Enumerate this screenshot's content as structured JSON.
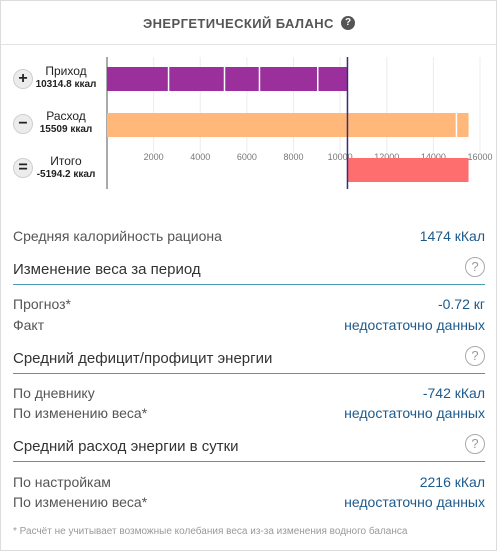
{
  "header": {
    "title": "ЭНЕРГЕТИЧЕСКИЙ БАЛАНС",
    "help_icon": "?"
  },
  "chart_data": {
    "type": "bar",
    "orientation": "horizontal",
    "xlim": [
      0,
      16000
    ],
    "ticks": [
      "2000",
      "4000",
      "6000",
      "8000",
      "10000",
      "12000",
      "14000",
      "16000"
    ],
    "tick_values": [
      2000,
      4000,
      6000,
      8000,
      10000,
      12000,
      14000,
      16000
    ],
    "reference_value": 10314.8,
    "rows": [
      {
        "icon": "+",
        "label": "Приход",
        "value_text": "10314.8 ккал",
        "start": 0,
        "end": 10314.8,
        "color": "#9b2f9c",
        "segments": [
          2640,
          5040,
          6540,
          9040
        ]
      },
      {
        "icon": "−",
        "label": "Расход",
        "value_text": "15509 ккал",
        "start": 0,
        "end": 15509,
        "color": "#ffb879",
        "segments": [
          14990
        ]
      },
      {
        "icon": "=",
        "label": "Итого",
        "value_text": "-5194.2 ккал",
        "start": 10314.8,
        "end": 15509,
        "color": "#ff6e6e",
        "segments": []
      }
    ]
  },
  "stats": {
    "avg_calories_label": "Средняя калорийность рациона",
    "avg_calories_value": "1474 кКал",
    "weight_change": {
      "title": "Изменение веса за период",
      "forecast_label": "Прогноз*",
      "forecast_value": "-0.72 кг",
      "fact_label": "Факт",
      "fact_value": "недостаточно данных"
    },
    "deficit": {
      "title": "Средний дефицит/профицит энергии",
      "diary_label": "По дневнику",
      "diary_value": "-742 кКал",
      "weight_label": "По изменению веса*",
      "weight_value": "недостаточно данных"
    },
    "expense": {
      "title": "Средний расход энергии в сутки",
      "settings_label": "По настройкам",
      "settings_value": "2216 кКал",
      "weight_label": "По изменению веса*",
      "weight_value": "недостаточно данных"
    }
  },
  "footnote": "* Расчёт не учитывает возможные колебания веса из-за изменения водного баланса",
  "question_icon": "?"
}
